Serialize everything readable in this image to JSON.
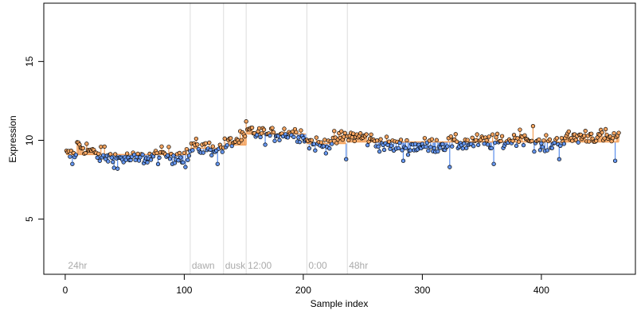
{
  "chart_data": {
    "type": "scatter",
    "xlabel": "Sample index",
    "ylabel": "Expression",
    "xlim": [
      -18,
      479
    ],
    "ylim": [
      1.5,
      18.7
    ],
    "x_ticks": [
      0,
      100,
      200,
      300,
      400
    ],
    "y_ticks": [
      5,
      10,
      15
    ],
    "baseline_segments": [
      {
        "start": 1,
        "end": 104,
        "value": 9.1
      },
      {
        "start": 105,
        "end": 133,
        "value": 9.5
      },
      {
        "start": 134,
        "end": 152,
        "value": 9.7
      },
      {
        "start": 153,
        "end": 202,
        "value": 10.4
      },
      {
        "start": 203,
        "end": 236,
        "value": 9.8
      },
      {
        "start": 237,
        "end": 465,
        "value": 9.9
      }
    ],
    "regions": [
      {
        "label": "24hr",
        "start": 1
      },
      {
        "label": "dawn",
        "start": 105
      },
      {
        "label": "dusk",
        "start": 133
      },
      {
        "label": "12:00",
        "start": 152
      },
      {
        "label": "0:00",
        "start": 203
      },
      {
        "label": "48hr",
        "start": 237
      }
    ],
    "points": {
      "n": 465,
      "levels": [
        [
          0,
          9.1
        ],
        [
          8,
          9.0
        ],
        [
          10,
          9.7
        ],
        [
          18,
          9.5
        ],
        [
          25,
          9.1
        ],
        [
          40,
          8.9
        ],
        [
          60,
          8.8
        ],
        [
          85,
          9.1
        ],
        [
          104,
          9.0
        ],
        [
          106,
          9.6
        ],
        [
          120,
          9.5
        ],
        [
          133,
          9.6
        ],
        [
          140,
          9.9
        ],
        [
          152,
          10.2
        ],
        [
          153,
          10.6
        ],
        [
          170,
          10.3
        ],
        [
          185,
          10.5
        ],
        [
          200,
          10.4
        ],
        [
          203,
          9.9
        ],
        [
          215,
          9.7
        ],
        [
          230,
          10.1
        ],
        [
          236,
          10.3
        ],
        [
          250,
          10.2
        ],
        [
          270,
          9.7
        ],
        [
          290,
          9.6
        ],
        [
          310,
          9.7
        ],
        [
          330,
          9.8
        ],
        [
          350,
          9.9
        ],
        [
          370,
          9.9
        ],
        [
          385,
          10.3
        ],
        [
          400,
          9.6
        ],
        [
          420,
          10.1
        ],
        [
          440,
          10.3
        ],
        [
          465,
          10.1
        ]
      ],
      "noise_sd": 0.35,
      "outliers": [
        [
          6,
          8.5
        ],
        [
          33,
          9.6
        ],
        [
          44,
          8.2
        ],
        [
          90,
          8.5
        ],
        [
          101,
          8.3
        ],
        [
          128,
          8.5
        ],
        [
          152,
          11.2
        ],
        [
          236,
          8.8
        ],
        [
          266,
          9.8
        ],
        [
          284,
          8.7
        ],
        [
          323,
          8.3
        ],
        [
          360,
          8.5
        ],
        [
          393,
          10.9
        ],
        [
          415,
          8.8
        ],
        [
          462,
          8.7
        ]
      ]
    },
    "colors": {
      "above": "#f4a460",
      "below": "#6495ed",
      "baseline": "#f4a460",
      "region_line": "#dddddd",
      "point_stroke": "#000000"
    }
  }
}
